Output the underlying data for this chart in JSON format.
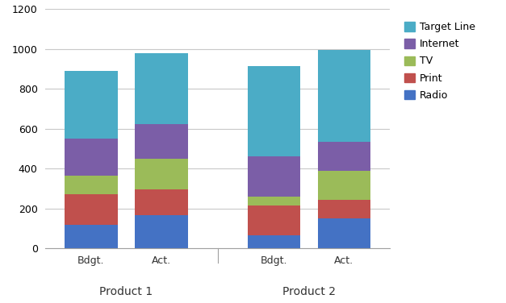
{
  "groups": [
    "Product 1",
    "Product 2"
  ],
  "bar_labels": [
    "Bdgt.",
    "Act.",
    "Bdgt.",
    "Act."
  ],
  "series": {
    "Radio": [
      120,
      165,
      65,
      150
    ],
    "Print": [
      150,
      130,
      150,
      95
    ],
    "TV": [
      95,
      155,
      45,
      145
    ],
    "Internet": [
      185,
      175,
      200,
      145
    ],
    "Target Line": [
      340,
      355,
      455,
      460
    ]
  },
  "colors": {
    "Radio": "#4472C4",
    "Print": "#C0504D",
    "TV": "#9BBB59",
    "Internet": "#7B5EA7",
    "Target Line": "#4BACC6"
  },
  "ylim": [
    0,
    1200
  ],
  "yticks": [
    0,
    200,
    400,
    600,
    800,
    1000,
    1200
  ],
  "bar_width": 0.75,
  "background_color": "#FFFFFF",
  "grid_color": "#C8C8C8",
  "legend_order": [
    "Target Line",
    "Internet",
    "TV",
    "Print",
    "Radio"
  ],
  "series_order": [
    "Radio",
    "Print",
    "TV",
    "Internet",
    "Target Line"
  ]
}
